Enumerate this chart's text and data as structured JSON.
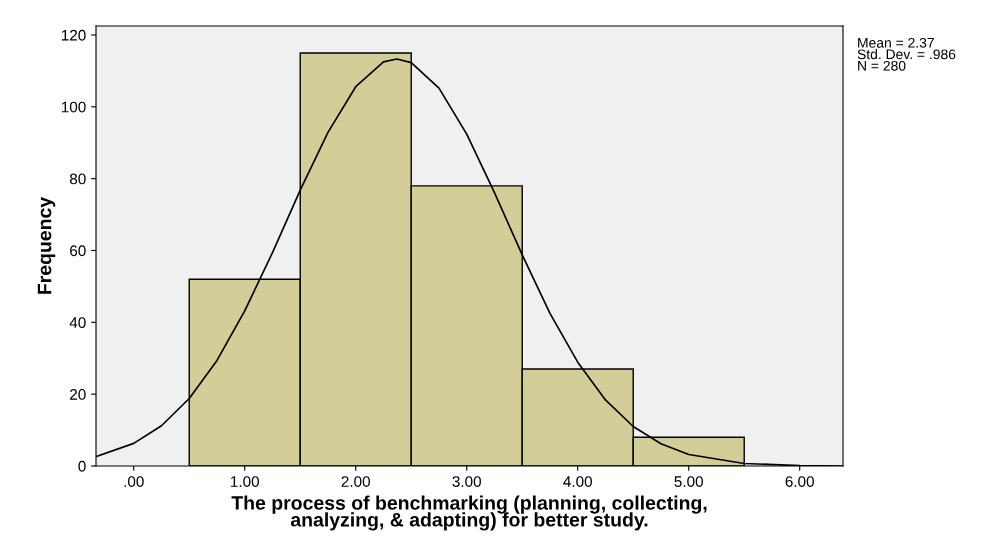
{
  "chart_data": {
    "type": "histogram",
    "xlabel": "The process of benchmarking (planning, collecting,\nanalyzing, & adapting) for better study.",
    "ylabel": "Frequency",
    "series": [
      {
        "bins": [
          0.5,
          1.5,
          2.5,
          3.5,
          4.5,
          5.5
        ],
        "values": [
          52,
          115,
          78,
          27,
          8
        ],
        "color": "#d3ce97"
      },
      {
        "type": "line",
        "color": "#000000",
        "x": [
          -0.34,
          0,
          0.25,
          0.5,
          0.75,
          1.0,
          1.25,
          1.5,
          1.75,
          2.0,
          2.25,
          2.37,
          2.5,
          2.75,
          3.0,
          3.25,
          3.5,
          3.75,
          4.0,
          4.25,
          4.5,
          4.75,
          5.0,
          5.5,
          6.0,
          6.39
        ],
        "values": [
          2.6,
          6.3,
          11.2,
          18.8,
          29.4,
          43.2,
          59.4,
          76.8,
          92.9,
          105.6,
          112.5,
          113.3,
          112.3,
          105.2,
          92.4,
          76.1,
          58.8,
          42.5,
          28.9,
          18.4,
          11.0,
          6.2,
          3.2,
          0.7,
          0.1,
          0.0
        ]
      }
    ],
    "xlim": [
      -0.34,
      6.39
    ],
    "ylim": [
      0,
      122.5
    ],
    "xticks": [
      {
        "value": 0,
        "label": ".00"
      },
      {
        "value": 1,
        "label": "1.00"
      },
      {
        "value": 2,
        "label": "2.00"
      },
      {
        "value": 3,
        "label": "3.00"
      },
      {
        "value": 4,
        "label": "4.00"
      },
      {
        "value": 5,
        "label": "5.00"
      },
      {
        "value": 6,
        "label": "6.00"
      }
    ],
    "yticks": [
      0,
      20,
      40,
      60,
      80,
      100,
      120
    ],
    "grid": false,
    "annotations": [
      "Mean = 2.37",
      "Std. Dev. = .986",
      "N = 280"
    ]
  }
}
